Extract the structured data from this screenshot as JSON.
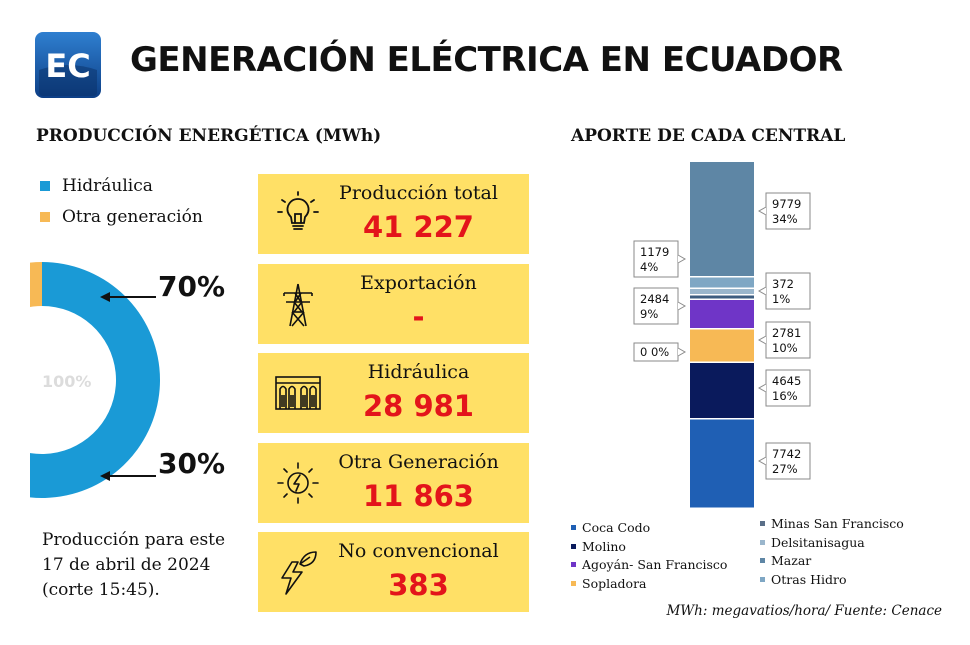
{
  "header": {
    "logo_text": "EC",
    "title": "GENERACIÓN ELÉCTRICA EN ECUADOR"
  },
  "left_section": {
    "title": "PRODUCCIÓN ENERGÉTICA (MWh)",
    "legend": [
      {
        "label": "Hidráulica",
        "color": "#1a9ad6"
      },
      {
        "label": "Otra generación",
        "color": "#f7b955"
      }
    ],
    "center_label": "100%",
    "pct_hidro": "70%",
    "pct_otra": "30%",
    "note": "Producción para este 17 de abril de 2024 (corte 15:45)."
  },
  "cards": [
    {
      "icon": "lightbulb-icon",
      "label": "Producción total",
      "value": "41 227"
    },
    {
      "icon": "power-tower-icon",
      "label": "Exportación",
      "value": "-"
    },
    {
      "icon": "hydro-dam-icon",
      "label": "Hidráulica",
      "value": "28 981"
    },
    {
      "icon": "sun-bolt-icon",
      "label": "Otra Generación",
      "value": "11 863"
    },
    {
      "icon": "leaf-bolt-icon",
      "label": "No convencional",
      "value": "383"
    }
  ],
  "right_section": {
    "title": "APORTE DE CADA CENTRAL"
  },
  "colors": {
    "card_bg": "#ffe066",
    "value_red": "#e3141b"
  },
  "chart_data": [
    {
      "type": "pie",
      "categories": [
        "Hidráulica",
        "Otra generación"
      ],
      "values": [
        70,
        30
      ],
      "unit": "%",
      "colors": [
        "#1a9ad6",
        "#f7b955"
      ]
    },
    {
      "type": "bar",
      "stacked": true,
      "title": "APORTE DE CADA CENTRAL",
      "series": [
        {
          "name": "Coca Codo",
          "value": 7742,
          "pct": "27%",
          "color": "#1f5fb4",
          "label_value": "7742",
          "label_pct": "27%",
          "label_side": "right"
        },
        {
          "name": "Molino",
          "value": 4645,
          "pct": "16%",
          "color": "#0a1a5c",
          "label_value": "4645",
          "label_pct": "16%",
          "label_side": "right"
        },
        {
          "name": "Sopladora",
          "value": 2781,
          "pct": "10%",
          "color": "#f7b955",
          "label_value": "2781",
          "label_pct": "10%",
          "label_side": "right"
        },
        {
          "name": "Agoyán- San Francisco",
          "value": 2484,
          "pct": "9%",
          "color": "#6f35c7",
          "label_value": "2484",
          "label_pct": "9%",
          "label_side": "left"
        },
        {
          "name": "Minas San Francisco",
          "value": 0,
          "pct": "0%",
          "color": "#3d5d80",
          "label_value": "0",
          "label_pct": "0%",
          "label_side": "left"
        },
        {
          "name": "Delsitanisagua",
          "value": 372,
          "pct": "1%",
          "color": "#9ab6cc",
          "label_value": "372",
          "label_pct": "1%",
          "label_side": "right"
        },
        {
          "name": "Mazar",
          "value": 1179,
          "pct": "4%",
          "color": "#7fa7c4",
          "label_value": "1179",
          "label_pct": "4%",
          "label_side": "left"
        },
        {
          "name": "Otras Hidro",
          "value": 9779,
          "pct": "34%",
          "color": "#5e86a5",
          "label_value": "9779",
          "label_pct": "34%",
          "label_side": "right"
        }
      ],
      "legend": {
        "columns": [
          [
            "Coca Codo",
            "Molino",
            "Agoyán- San Francisco",
            "Sopladora"
          ],
          [
            "Minas San Francisco",
            "Delsitanisagua",
            "Mazar",
            "Otras Hidro"
          ]
        ],
        "colors": {
          "Coca Codo": "#1f5fb4",
          "Molino": "#0a1a5c",
          "Agoyán- San Francisco": "#6f35c7",
          "Sopladora": "#f7b955",
          "Minas San Francisco": "#5a6f88",
          "Delsitanisagua": "#9ab6cc",
          "Mazar": "#5e86a5",
          "Otras Hidro": "#7fa7c4"
        },
        "placement": "bottom"
      }
    }
  ],
  "source": "MWh: megavatios/hora/ Fuente: Cenace"
}
